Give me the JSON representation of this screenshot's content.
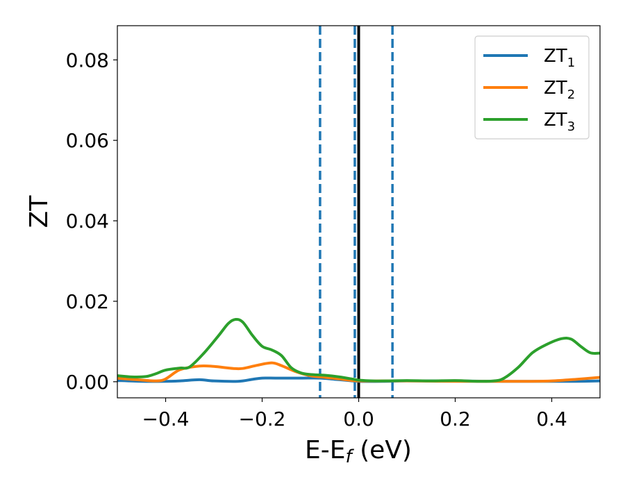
{
  "chart_data": {
    "type": "line",
    "title": "",
    "xlabel": "E-E",
    "xlabel_sub": "f",
    "xlabel_unit": " (eV)",
    "ylabel": "ZT",
    "xlim": [
      -0.5,
      0.5
    ],
    "ylim": [
      -0.004,
      0.0885
    ],
    "grid": false,
    "legend_position": "top-right",
    "x_ticks": [
      {
        "value": -0.4,
        "label": "−0.4"
      },
      {
        "value": -0.2,
        "label": "−0.2"
      },
      {
        "value": 0.0,
        "label": "0.0"
      },
      {
        "value": 0.2,
        "label": "0.2"
      },
      {
        "value": 0.4,
        "label": "0.4"
      }
    ],
    "y_ticks": [
      {
        "value": 0.0,
        "label": "0.00"
      },
      {
        "value": 0.02,
        "label": "0.02"
      },
      {
        "value": 0.04,
        "label": "0.04"
      },
      {
        "value": 0.06,
        "label": "0.06"
      },
      {
        "value": 0.08,
        "label": "0.08"
      }
    ],
    "vertical_lines": [
      {
        "x": -0.08,
        "style": "dashed",
        "color": "#1f77b4"
      },
      {
        "x": -0.008,
        "style": "dashed",
        "color": "#1f77b4"
      },
      {
        "x": 0.07,
        "style": "dashed",
        "color": "#1f77b4"
      },
      {
        "x": 0.0,
        "style": "solid",
        "color": "#000000"
      }
    ],
    "series": [
      {
        "name": "ZT",
        "name_sub": "1",
        "color": "#1f77b4",
        "x": [
          -0.5,
          -0.45,
          -0.4,
          -0.37,
          -0.33,
          -0.3,
          -0.25,
          -0.22,
          -0.2,
          -0.17,
          -0.12,
          -0.08,
          -0.05,
          -0.02,
          0.0,
          0.05,
          0.1,
          0.2,
          0.3,
          0.4,
          0.45,
          0.5
        ],
        "y": [
          0.0003,
          0.0001,
          0.0001,
          0.0002,
          0.0005,
          0.0002,
          0.0001,
          0.0006,
          0.0009,
          0.0009,
          0.0009,
          0.0009,
          0.0006,
          0.0003,
          0.0001,
          0.0001,
          0.0002,
          0.0002,
          0.0001,
          0.0001,
          0.0001,
          0.0002
        ]
      },
      {
        "name": "ZT",
        "name_sub": "2",
        "color": "#ff7f0e",
        "x": [
          -0.5,
          -0.46,
          -0.42,
          -0.4,
          -0.37,
          -0.33,
          -0.3,
          -0.26,
          -0.24,
          -0.21,
          -0.18,
          -0.16,
          -0.13,
          -0.1,
          -0.07,
          -0.04,
          -0.02,
          0.0,
          0.05,
          0.1,
          0.2,
          0.3,
          0.35,
          0.4,
          0.45,
          0.5
        ],
        "y": [
          0.0009,
          0.0005,
          0.0002,
          0.0007,
          0.003,
          0.0039,
          0.0038,
          0.0033,
          0.0033,
          0.0041,
          0.0047,
          0.004,
          0.0025,
          0.0015,
          0.0011,
          0.0007,
          0.0004,
          0.0002,
          0.0002,
          0.0002,
          0.0001,
          0.0001,
          0.0001,
          0.0002,
          0.0006,
          0.0011
        ]
      },
      {
        "name": "ZT",
        "name_sub": "3",
        "color": "#2ca02c",
        "x": [
          -0.5,
          -0.47,
          -0.44,
          -0.42,
          -0.4,
          -0.37,
          -0.35,
          -0.32,
          -0.29,
          -0.27,
          -0.255,
          -0.24,
          -0.22,
          -0.2,
          -0.18,
          -0.16,
          -0.14,
          -0.12,
          -0.1,
          -0.07,
          -0.04,
          -0.01,
          0.0,
          0.03,
          0.06,
          0.1,
          0.15,
          0.2,
          0.25,
          0.28,
          0.3,
          0.33,
          0.36,
          0.39,
          0.42,
          0.44,
          0.46,
          0.48,
          0.5
        ],
        "y": [
          0.0015,
          0.0012,
          0.0013,
          0.002,
          0.0029,
          0.0034,
          0.0037,
          0.0072,
          0.0115,
          0.0145,
          0.0155,
          0.0148,
          0.0115,
          0.0088,
          0.0079,
          0.0065,
          0.0035,
          0.0022,
          0.0018,
          0.0016,
          0.0012,
          0.0006,
          0.0004,
          0.0002,
          0.0002,
          0.0003,
          0.0002,
          0.0003,
          0.0001,
          0.0002,
          0.0008,
          0.0035,
          0.0072,
          0.0093,
          0.0107,
          0.0106,
          0.0088,
          0.0072,
          0.0071
        ]
      }
    ]
  }
}
